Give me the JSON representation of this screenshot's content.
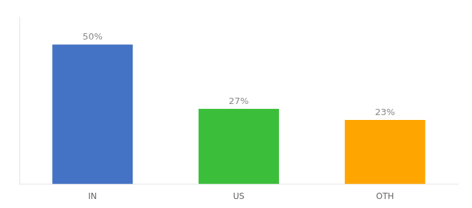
{
  "chart_data": {
    "type": "bar",
    "categories": [
      "IN",
      "US",
      "OTH"
    ],
    "values": [
      50,
      27,
      23
    ],
    "value_labels": [
      "50%",
      "27%",
      "23%"
    ],
    "colors": [
      "#4472C4",
      "#3BBF3B",
      "#FFA500"
    ],
    "ylim": [
      0,
      60
    ],
    "data_labels": true,
    "grid": false,
    "tick_labels": "x"
  }
}
